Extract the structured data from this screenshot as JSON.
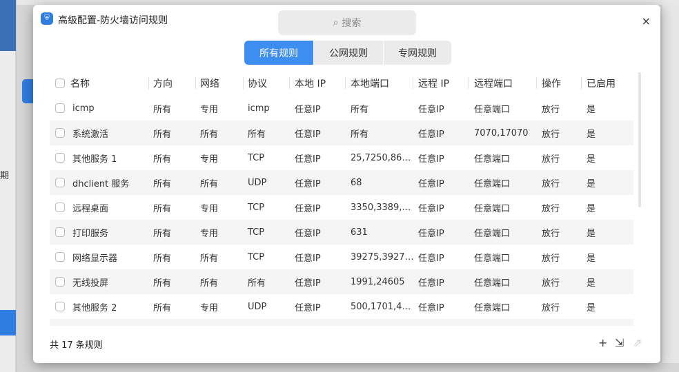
{
  "background": {
    "side_text": "期"
  },
  "dialog": {
    "title": "高级配置-防火墙访问规则",
    "logo_icon": "shield-icon",
    "search_placeholder": "搜索",
    "close": "×"
  },
  "tabs": [
    {
      "label": "所有规则",
      "active": true
    },
    {
      "label": "公网规则",
      "active": false
    },
    {
      "label": "专网规则",
      "active": false
    }
  ],
  "table": {
    "columns": [
      "名称",
      "方向",
      "网络",
      "协议",
      "本地 IP",
      "本地端口",
      "远程 IP",
      "远程端口",
      "操作",
      "已启用"
    ],
    "rows": [
      [
        "icmp",
        "所有",
        "专用",
        "icmp",
        "任意IP",
        "所有",
        "任意IP",
        "任意端口",
        "放行",
        "是"
      ],
      [
        "系统激活",
        "所有",
        "所有",
        "所有",
        "任意IP",
        "所有",
        "任意IP",
        "7070,17070",
        "放行",
        "是"
      ],
      [
        "其他服务 1",
        "所有",
        "专用",
        "TCP",
        "任意IP",
        "25,7250,86…",
        "任意IP",
        "任意端口",
        "放行",
        "是"
      ],
      [
        "dhclient 服务",
        "所有",
        "所有",
        "UDP",
        "任意IP",
        "68",
        "任意IP",
        "任意端口",
        "放行",
        "是"
      ],
      [
        "远程桌面",
        "所有",
        "专用",
        "TCP",
        "任意IP",
        "3350,3389,…",
        "任意IP",
        "任意端口",
        "放行",
        "是"
      ],
      [
        "打印服务",
        "所有",
        "专用",
        "TCP",
        "任意IP",
        "631",
        "任意IP",
        "任意端口",
        "放行",
        "是"
      ],
      [
        "网络显示器",
        "所有",
        "所有",
        "TCP",
        "任意IP",
        "39275,3927…",
        "任意IP",
        "任意端口",
        "放行",
        "是"
      ],
      [
        "无线投屏",
        "所有",
        "所有",
        "所有",
        "任意IP",
        "1991,24605",
        "任意IP",
        "任意端口",
        "放行",
        "是"
      ],
      [
        "其他服务 2",
        "所有",
        "专用",
        "UDP",
        "任意IP",
        "500,1701,4…",
        "任意IP",
        "任意端口",
        "放行",
        "是"
      ]
    ]
  },
  "footer": {
    "count": "共 17 条规则",
    "add": "+",
    "import": "⇲",
    "export": "⇗"
  },
  "colors": {
    "accent": "#3d8ef0"
  }
}
